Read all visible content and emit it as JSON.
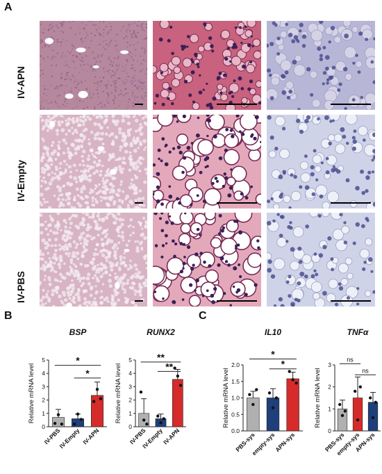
{
  "panel_letters": {
    "a": "A",
    "b": "B",
    "c": "C"
  },
  "histology": {
    "rows": [
      {
        "label": "IV-APN"
      },
      {
        "label": "IV-Empty"
      },
      {
        "label": "IV-PBS"
      }
    ]
  },
  "colors": {
    "gray": "#b0b0b0",
    "navy": "#1f3f7a",
    "red": "#d62b2b",
    "he_pink": "#c96f8a",
    "ihc_blue": "#b9c3df"
  },
  "chart_data": [
    {
      "type": "bar",
      "title": "BSP",
      "ylabel": "Relative mRNA level",
      "ylim": [
        0,
        5
      ],
      "yticks": [
        "0",
        "1",
        "2",
        "3",
        "4",
        "5"
      ],
      "categories": [
        "IV-PBS",
        "IV-Empty",
        "IV-APN"
      ],
      "values": [
        0.7,
        0.6,
        2.35
      ],
      "errors": [
        0.6,
        0.35,
        1.0
      ],
      "bar_colors": [
        "#b0b0b0",
        "#1f3f7a",
        "#d62b2b"
      ],
      "points": [
        [
          0.25,
          0.9,
          0.2
        ],
        [
          0.2,
          0.95,
          0.55
        ],
        [
          1.9,
          2.8,
          2.1
        ]
      ],
      "significance": [
        {
          "from": 0,
          "to": 2,
          "label": "*",
          "y": 4.6
        },
        {
          "from": 1,
          "to": 2,
          "label": "*",
          "y": 3.65
        }
      ]
    },
    {
      "type": "bar",
      "title": "RUNX2",
      "ylabel": "Relative mRNA level",
      "ylim": [
        0,
        5
      ],
      "yticks": [
        "0",
        "1",
        "2",
        "3",
        "4",
        "5"
      ],
      "categories": [
        "IV-PBS",
        "IV-Empty",
        "IV-APN"
      ],
      "values": [
        1.0,
        0.6,
        3.55
      ],
      "errors": [
        1.1,
        0.35,
        0.75
      ],
      "bar_colors": [
        "#b0b0b0",
        "#1f3f7a",
        "#d62b2b"
      ],
      "points": [
        [
          2.6,
          0.5,
          0.2
        ],
        [
          0.8,
          0.3,
          0.6
        ],
        [
          4.4,
          3.8,
          3.1
        ]
      ],
      "significance": [
        {
          "from": 0,
          "to": 2,
          "label": "**",
          "y": 4.85
        },
        {
          "from": 1,
          "to": 2,
          "label": "**",
          "y": 4.15
        }
      ]
    },
    {
      "type": "bar",
      "title": "IL10",
      "ylabel": "Relative mRNA level",
      "ylim": [
        0,
        2.0
      ],
      "yticks": [
        "0.0",
        "0.5",
        "1.0",
        "1.5",
        "2.0"
      ],
      "categories": [
        "PBS-sys",
        "empty-sys",
        "APN-sys"
      ],
      "values": [
        1.0,
        1.0,
        1.58
      ],
      "errors": [
        0.2,
        0.28,
        0.2
      ],
      "bar_colors": [
        "#b0b0b0",
        "#1f3f7a",
        "#d62b2b"
      ],
      "points": [
        [
          1.1,
          0.8,
          1.25
        ],
        [
          1.15,
          0.7,
          1.0
        ],
        [
          1.8,
          1.55,
          1.45
        ]
      ],
      "significance": [
        {
          "from": 0,
          "to": 2,
          "label": "*",
          "y": 2.18
        },
        {
          "from": 1,
          "to": 2,
          "label": "*",
          "y": 1.88
        }
      ]
    },
    {
      "type": "bar",
      "title": "TNFα",
      "ylabel": "Relative mRNA level",
      "ylim": [
        0,
        3
      ],
      "yticks": [
        "0",
        "1",
        "2",
        "3"
      ],
      "categories": [
        "PBS-sys",
        "empty-sys",
        "APN-sys"
      ],
      "values": [
        1.0,
        1.5,
        1.3
      ],
      "errors": [
        0.4,
        0.95,
        0.45
      ],
      "bar_colors": [
        "#b0b0b0",
        "#d62b2b",
        "#1f3f7a"
      ],
      "points": [
        [
          1.2,
          0.7,
          0.9
        ],
        [
          1.8,
          0.5,
          2.0
        ],
        [
          1.5,
          0.6,
          1.3
        ]
      ],
      "significance": [
        {
          "from": 0,
          "to": 1,
          "label": "ns",
          "y": 3.05
        },
        {
          "from": 1,
          "to": 2,
          "label": "ns",
          "y": 2.55
        }
      ]
    }
  ]
}
